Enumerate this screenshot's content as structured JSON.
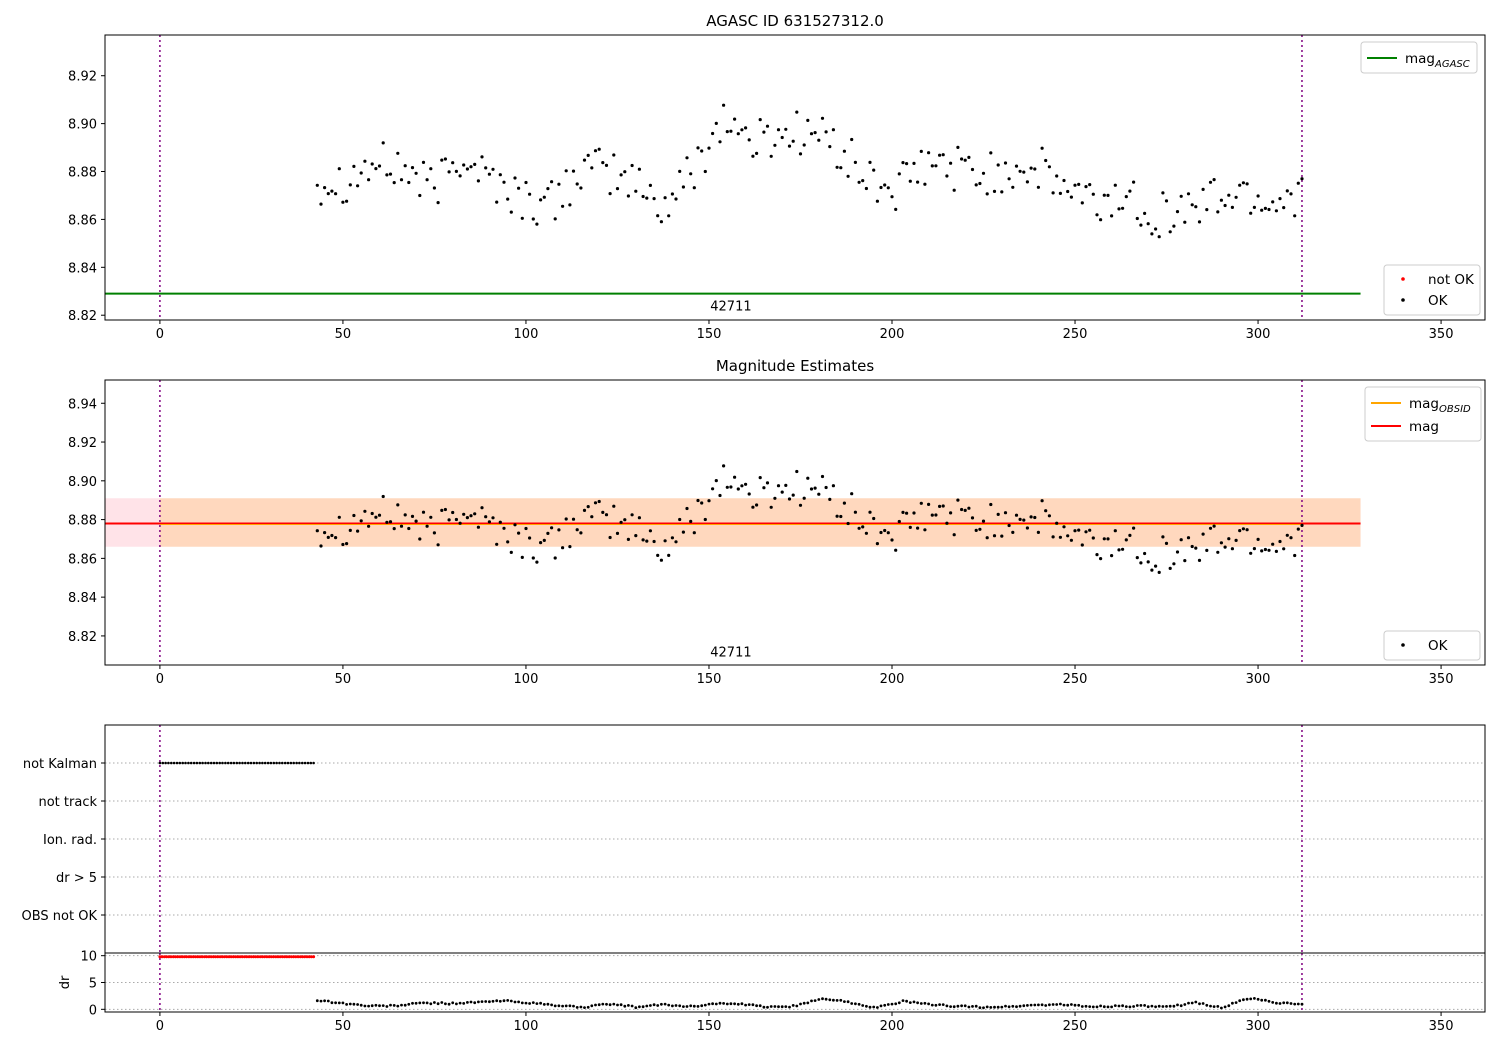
{
  "chart_data": [
    {
      "type": "scatter",
      "title": "AGASC ID 631527312.0",
      "xlim": [
        -15,
        362
      ],
      "ylim": [
        8.818,
        8.937
      ],
      "xticks": [
        0,
        50,
        100,
        150,
        200,
        250,
        300,
        350
      ],
      "yticks": [
        8.82,
        8.84,
        8.86,
        8.88,
        8.9,
        8.92
      ],
      "vlines": [
        0,
        312
      ],
      "hline": {
        "label": "mag",
        "sub": "AGASC",
        "y": 8.829,
        "x": [
          -15,
          328
        ],
        "color": "#008000"
      },
      "annotation": {
        "text": "42711",
        "x": 156,
        "y": 8.824
      },
      "legend_lines": [
        {
          "label": "mag",
          "sub": "AGASC",
          "color": "#008000"
        }
      ],
      "legend_points": [
        {
          "label": "not OK",
          "color": "#ff0000"
        },
        {
          "label": "OK",
          "color": "#000000"
        }
      ],
      "series": [
        {
          "name": "OK",
          "color": "#000000",
          "x_start": 43,
          "x_end": 312,
          "count": 270,
          "mean": 8.878,
          "walk": [
            8.876,
            8.877,
            8.883,
            8.881,
            8.872,
            8.888,
            8.877,
            8.869,
            8.865,
            8.88,
            8.88,
            8.875,
            8.865,
            8.881,
            8.903,
            8.892,
            8.896,
            8.897,
            8.89,
            8.876,
            8.872,
            8.882,
            8.882,
            8.878,
            8.882,
            8.88,
            8.871,
            8.866,
            8.87,
            8.862,
            8.864,
            8.869,
            8.871,
            8.867,
            8.873
          ]
        }
      ]
    },
    {
      "type": "scatter",
      "title": "Magnitude Estimates",
      "xlim": [
        -15,
        362
      ],
      "ylim": [
        8.805,
        8.952
      ],
      "xticks": [
        0,
        50,
        100,
        150,
        200,
        250,
        300,
        350
      ],
      "yticks": [
        8.82,
        8.84,
        8.86,
        8.88,
        8.9,
        8.92,
        8.94
      ],
      "vlines": [
        0,
        312
      ],
      "hline": {
        "label": "mag",
        "y": 8.878,
        "x": [
          -15,
          328
        ],
        "color": "#ff0000"
      },
      "band_outer": {
        "y": [
          8.866,
          8.891
        ],
        "x": [
          -15,
          328
        ],
        "color": "#ffc0cb"
      },
      "band_inner": {
        "y": [
          8.866,
          8.891
        ],
        "x": [
          -15,
          328
        ],
        "color": "#ffa500"
      },
      "annotation": {
        "text": "42711",
        "x": 156,
        "y": 8.812
      },
      "legend_lines": [
        {
          "label": "mag",
          "sub": "OBSID",
          "color": "#ffa500"
        },
        {
          "label": "mag",
          "color": "#ff0000"
        }
      ],
      "legend_points": [
        {
          "label": "OK",
          "color": "#000000"
        }
      ]
    },
    {
      "type": "scatter",
      "title": "",
      "xlim": [
        -15,
        362
      ],
      "categories": [
        "not Kalman",
        "not track",
        "Ion. rad.",
        "dr > 5",
        "OBS not OK"
      ],
      "vlines": [
        0,
        312
      ],
      "flags": [
        {
          "category": "not Kalman",
          "x_start": 0,
          "x_end": 42,
          "count": 55
        }
      ]
    },
    {
      "type": "scatter",
      "title": "",
      "ylabel": "dr",
      "xlim": [
        -15,
        362
      ],
      "ylim": [
        -0.5,
        10.5
      ],
      "xticks": [
        0,
        50,
        100,
        150,
        200,
        250,
        300,
        350
      ],
      "yticks": [
        0,
        5,
        10
      ],
      "vlines": [
        0,
        312
      ],
      "series": [
        {
          "name": "not OK",
          "color": "#ff0000",
          "x_start": 0,
          "x_end": 42,
          "count": 70,
          "value": 9.8
        },
        {
          "name": "OK",
          "color": "#000000",
          "x_start": 43,
          "x_end": 312,
          "count": 270,
          "walk": [
            1.7,
            1.1,
            0.6,
            0.7,
            1.2,
            1.1,
            1.3,
            1.6,
            1.2,
            0.7,
            0.4,
            1.0,
            0.4,
            0.9,
            0.5,
            1.1,
            0.9,
            0.4,
            0.6,
            2.1,
            1.3,
            0.3,
            1.5,
            0.9,
            0.6,
            0.4,
            0.5,
            0.8,
            0.9,
            0.5,
            0.6,
            0.6,
            0.4,
            1.3,
            0.3,
            2.1,
            1.3,
            0.8
          ]
        }
      ]
    }
  ]
}
